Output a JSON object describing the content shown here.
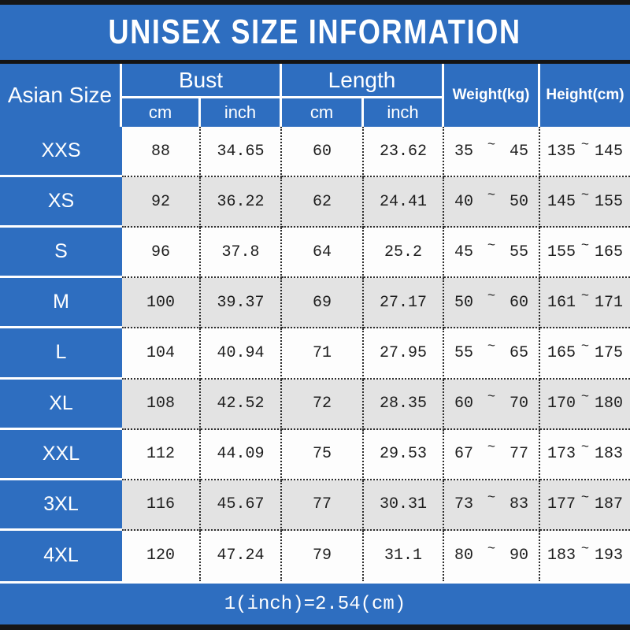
{
  "title": "UNISEX SIZE INFORMATION",
  "table": {
    "col_headers": {
      "asian_size": "Asian Size",
      "bust": "Bust",
      "length": "Length",
      "weight": "Weight(kg)",
      "height": "Height(cm)",
      "unit_cm": "cm",
      "unit_inch": "inch"
    },
    "range_separator": "~",
    "rows": [
      {
        "size": "XXS",
        "bust_cm": "88",
        "bust_inch": "34.65",
        "length_cm": "60",
        "length_inch": "23.62",
        "weight_min": "35",
        "weight_max": "45",
        "height_min": "135",
        "height_max": "145"
      },
      {
        "size": "XS",
        "bust_cm": "92",
        "bust_inch": "36.22",
        "length_cm": "62",
        "length_inch": "24.41",
        "weight_min": "40",
        "weight_max": "50",
        "height_min": "145",
        "height_max": "155"
      },
      {
        "size": "S",
        "bust_cm": "96",
        "bust_inch": "37.8",
        "length_cm": "64",
        "length_inch": "25.2",
        "weight_min": "45",
        "weight_max": "55",
        "height_min": "155",
        "height_max": "165"
      },
      {
        "size": "M",
        "bust_cm": "100",
        "bust_inch": "39.37",
        "length_cm": "69",
        "length_inch": "27.17",
        "weight_min": "50",
        "weight_max": "60",
        "height_min": "161",
        "height_max": "171"
      },
      {
        "size": "L",
        "bust_cm": "104",
        "bust_inch": "40.94",
        "length_cm": "71",
        "length_inch": "27.95",
        "weight_min": "55",
        "weight_max": "65",
        "height_min": "165",
        "height_max": "175"
      },
      {
        "size": "XL",
        "bust_cm": "108",
        "bust_inch": "42.52",
        "length_cm": "72",
        "length_inch": "28.35",
        "weight_min": "60",
        "weight_max": "70",
        "height_min": "170",
        "height_max": "180"
      },
      {
        "size": "XXL",
        "bust_cm": "112",
        "bust_inch": "44.09",
        "length_cm": "75",
        "length_inch": "29.53",
        "weight_min": "67",
        "weight_max": "77",
        "height_min": "173",
        "height_max": "183"
      },
      {
        "size": "3XL",
        "bust_cm": "116",
        "bust_inch": "45.67",
        "length_cm": "77",
        "length_inch": "30.31",
        "weight_min": "73",
        "weight_max": "83",
        "height_min": "177",
        "height_max": "187"
      },
      {
        "size": "4XL",
        "bust_cm": "120",
        "bust_inch": "47.24",
        "length_cm": "79",
        "length_inch": "31.1",
        "weight_min": "80",
        "weight_max": "90",
        "height_min": "183",
        "height_max": "193"
      }
    ]
  },
  "footer_note": "1(inch)=2.54(cm)",
  "colors": {
    "blue": "#2e6ec0",
    "row_white": "#fdfdfd",
    "row_alt": "#e3e3e3",
    "bar_black": "#161616",
    "text_dark": "#1e1e1e"
  },
  "chart_data": {
    "type": "table",
    "title": "UNISEX SIZE INFORMATION",
    "columns": [
      "Asian Size",
      "Bust cm",
      "Bust inch",
      "Length cm",
      "Length inch",
      "Weight(kg)",
      "Height(cm)"
    ],
    "rows": [
      [
        "XXS",
        88,
        34.65,
        60,
        23.62,
        "35~45",
        "135~145"
      ],
      [
        "XS",
        92,
        36.22,
        62,
        24.41,
        "40~50",
        "145~155"
      ],
      [
        "S",
        96,
        37.8,
        64,
        25.2,
        "45~55",
        "155~165"
      ],
      [
        "M",
        100,
        39.37,
        69,
        27.17,
        "50~60",
        "161~171"
      ],
      [
        "L",
        104,
        40.94,
        71,
        27.95,
        "55~65",
        "165~175"
      ],
      [
        "XL",
        108,
        42.52,
        72,
        28.35,
        "60~70",
        "170~180"
      ],
      [
        "XXL",
        112,
        44.09,
        75,
        29.53,
        "67~77",
        "173~183"
      ],
      [
        "3XL",
        116,
        45.67,
        77,
        30.31,
        "73~83",
        "177~187"
      ],
      [
        "4XL",
        120,
        47.24,
        79,
        31.1,
        "80~90",
        "183~193"
      ]
    ],
    "note": "1(inch)=2.54(cm)"
  }
}
